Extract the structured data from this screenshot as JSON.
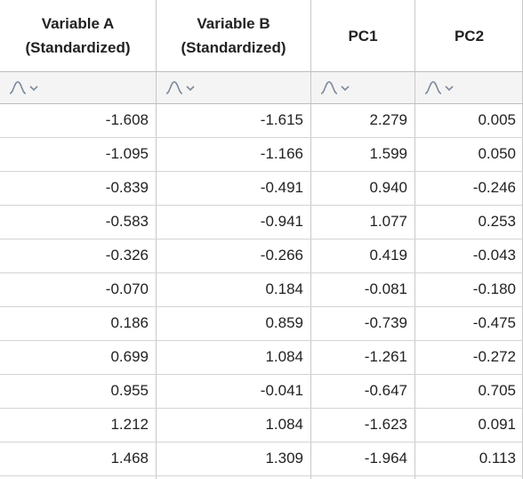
{
  "columns": [
    {
      "header_line1": "Variable A",
      "header_line2": "(Standardized)"
    },
    {
      "header_line1": "Variable B",
      "header_line2": "(Standardized)"
    },
    {
      "header_line1": "PC1",
      "header_line2": ""
    },
    {
      "header_line1": "PC2",
      "header_line2": ""
    }
  ],
  "filter_icon": "distribution-filter-icon",
  "accent_color": "#7d8a9c",
  "rows": [
    [
      "-1.608",
      "-1.615",
      "2.279",
      "0.005"
    ],
    [
      "-1.095",
      "-1.166",
      "1.599",
      "0.050"
    ],
    [
      "-0.839",
      "-0.491",
      "0.940",
      "-0.246"
    ],
    [
      "-0.583",
      "-0.941",
      "1.077",
      "0.253"
    ],
    [
      "-0.326",
      "-0.266",
      "0.419",
      "-0.043"
    ],
    [
      "-0.070",
      "0.184",
      "-0.081",
      "-0.180"
    ],
    [
      "0.186",
      "0.859",
      "-0.739",
      "-0.475"
    ],
    [
      "0.699",
      "1.084",
      "-1.261",
      "-0.272"
    ],
    [
      "0.955",
      "-0.041",
      "-0.647",
      "0.705"
    ],
    [
      "1.212",
      "1.084",
      "-1.623",
      "0.091"
    ],
    [
      "1.468",
      "1.309",
      "-1.964",
      "0.113"
    ]
  ]
}
